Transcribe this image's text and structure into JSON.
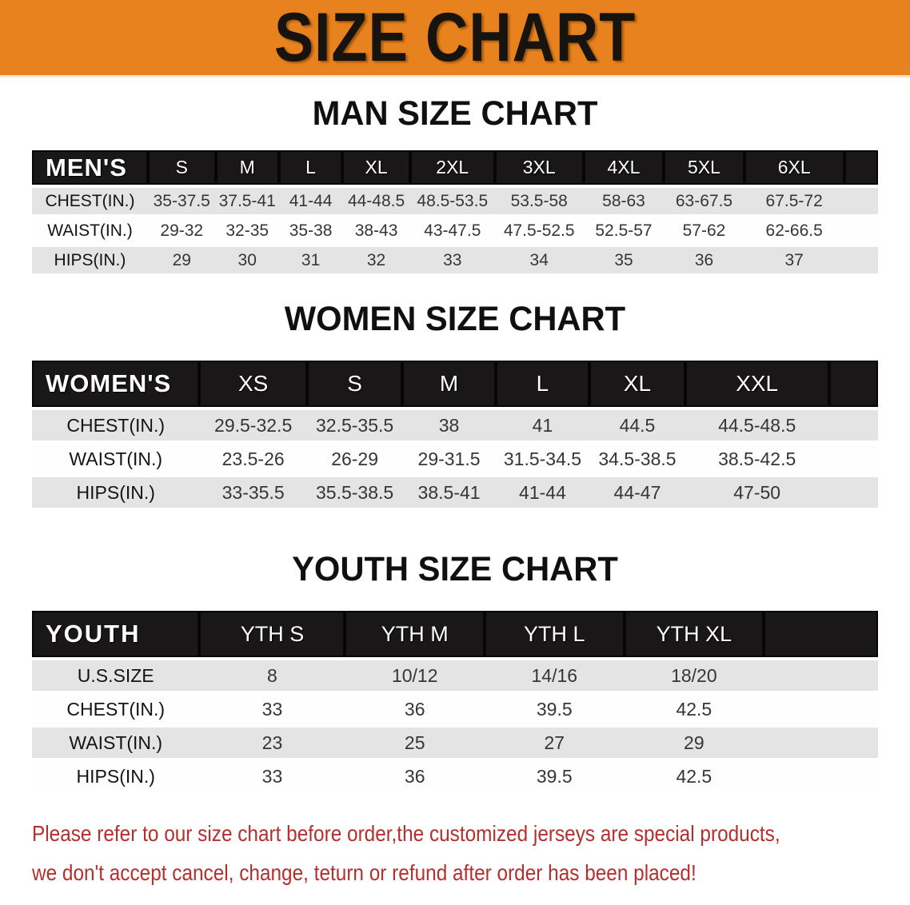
{
  "banner": {
    "title": "SIZE CHART"
  },
  "colors": {
    "banner_bg": "#e8821e",
    "table_header_bg": "#191718",
    "row_stripe": "#e4e4e4",
    "footer_text": "#b3302e"
  },
  "sections": [
    {
      "heading": "MAN SIZE CHART",
      "table": {
        "label": "MEN'S",
        "columns": [
          "S",
          "M",
          "L",
          "XL",
          "2XL",
          "3XL",
          "4XL",
          "5XL",
          "6XL"
        ],
        "rows": [
          {
            "label": "CHEST(IN.)",
            "values": [
              "35-37.5",
              "37.5-41",
              "41-44",
              "44-48.5",
              "48.5-53.5",
              "53.5-58",
              "58-63",
              "63-67.5",
              "67.5-72"
            ]
          },
          {
            "label": "WAIST(IN.)",
            "values": [
              "29-32",
              "32-35",
              "35-38",
              "38-43",
              "43-47.5",
              "47.5-52.5",
              "52.5-57",
              "57-62",
              "62-66.5"
            ]
          },
          {
            "label": "HIPS(IN.)",
            "values": [
              "29",
              "30",
              "31",
              "32",
              "33",
              "34",
              "35",
              "36",
              "37"
            ]
          }
        ]
      }
    },
    {
      "heading": "WOMEN SIZE CHART",
      "table": {
        "label": "WOMEN'S",
        "columns": [
          "XS",
          "S",
          "M",
          "L",
          "XL",
          "XXL"
        ],
        "rows": [
          {
            "label": "CHEST(IN.)",
            "values": [
              "29.5-32.5",
              "32.5-35.5",
              "38",
              "41",
              "44.5",
              "44.5-48.5"
            ]
          },
          {
            "label": "WAIST(IN.)",
            "values": [
              "23.5-26",
              "26-29",
              "29-31.5",
              "31.5-34.5",
              "34.5-38.5",
              "38.5-42.5"
            ]
          },
          {
            "label": "HIPS(IN.)",
            "values": [
              "33-35.5",
              "35.5-38.5",
              "38.5-41",
              "41-44",
              "44-47",
              "47-50"
            ]
          }
        ]
      }
    },
    {
      "heading": "YOUTH SIZE CHART",
      "table": {
        "label": "YOUTH",
        "columns": [
          "YTH S",
          "YTH M",
          "YTH L",
          "YTH XL"
        ],
        "rows": [
          {
            "label": "U.S.SIZE",
            "values": [
              "8",
              "10/12",
              "14/16",
              "18/20"
            ]
          },
          {
            "label": "CHEST(IN.)",
            "values": [
              "33",
              "36",
              "39.5",
              "42.5"
            ]
          },
          {
            "label": "WAIST(IN.)",
            "values": [
              "23",
              "25",
              "27",
              "29"
            ]
          },
          {
            "label": "HIPS(IN.)",
            "values": [
              "33",
              "36",
              "39.5",
              "42.5"
            ]
          }
        ]
      }
    }
  ],
  "footer": {
    "line1": "Please refer to our size chart before order,the customized jerseys are special products,",
    "line2": "we don't accept cancel, change, teturn or refund after order has been placed!"
  }
}
